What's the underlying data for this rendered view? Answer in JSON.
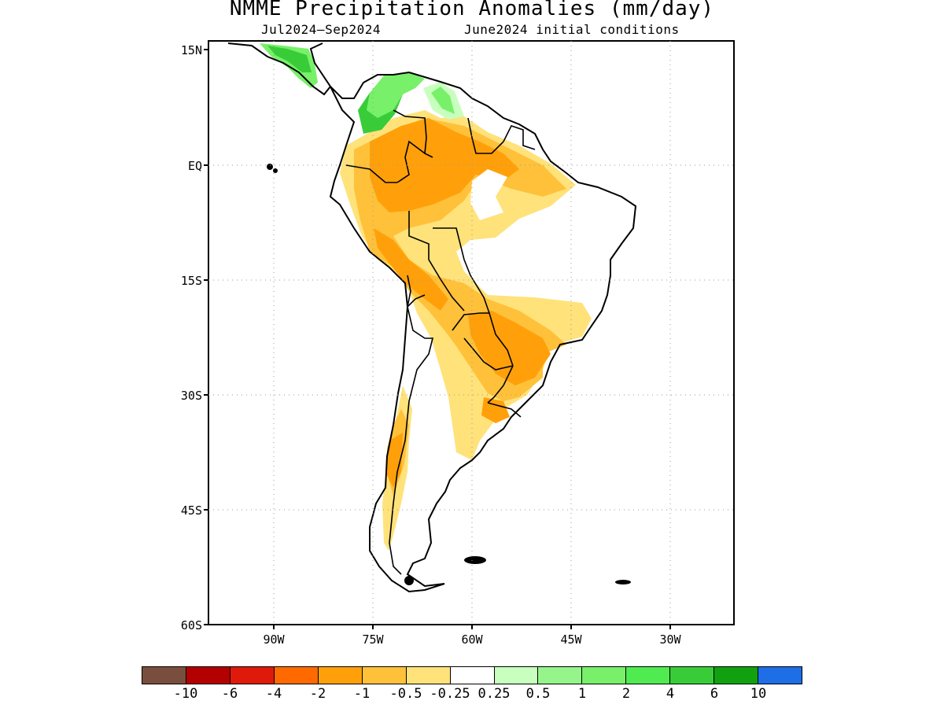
{
  "title": "NMME Precipitation Anomalies (mm/day)",
  "subtitle_left": "Jul2024–Sep2024",
  "subtitle_right": "June2024 initial conditions",
  "lat_labels": [
    "15N",
    "EQ",
    "15S",
    "30S",
    "45S",
    "60S"
  ],
  "lon_labels": [
    "90W",
    "75W",
    "60W",
    "45W",
    "30W"
  ],
  "colorbar": {
    "colors": [
      "#7a4e3e",
      "#b30000",
      "#e01a0a",
      "#ff6a00",
      "#ffa00a",
      "#ffc13a",
      "#ffe27a",
      "#ffffff",
      "#c8ffbe",
      "#96f58a",
      "#78f06a",
      "#50eb50",
      "#38cd38",
      "#10a010",
      "#1e6ee6"
    ],
    "labels": [
      "-10",
      "-6",
      "-4",
      "-2",
      "-1",
      "-0.5",
      "-0.25",
      "0.25",
      "0.5",
      "1",
      "2",
      "4",
      "6",
      "10"
    ]
  },
  "map_colors": {
    "light_yellow": "#ffe27a",
    "orange_light": "#ffc13a",
    "orange": "#ffa00a",
    "green_pale": "#c8ffbe",
    "green_mid": "#78f06a",
    "green_dark": "#38cd38"
  }
}
